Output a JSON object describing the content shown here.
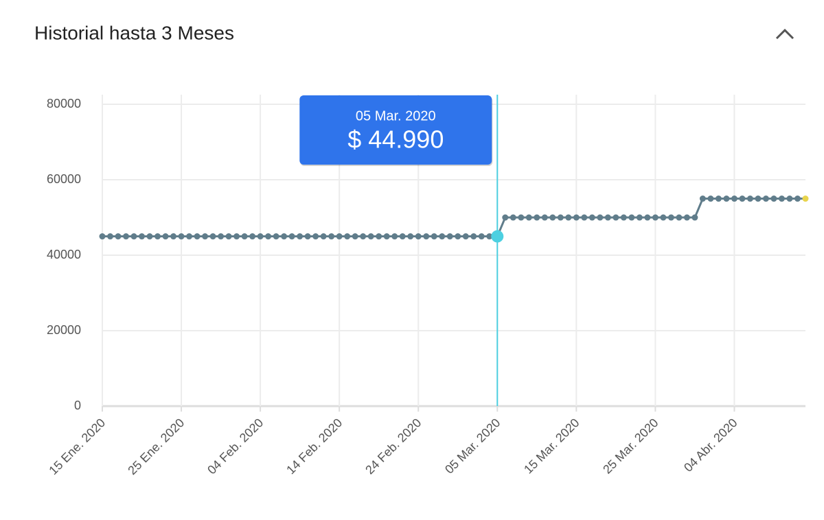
{
  "header": {
    "title": "Historial hasta 3 Meses"
  },
  "chart_data": {
    "type": "line",
    "categories": [
      "15 Ene. 2020",
      null,
      null,
      null,
      null,
      null,
      null,
      null,
      null,
      null,
      "25 Ene. 2020",
      null,
      null,
      null,
      null,
      null,
      null,
      null,
      null,
      null,
      "04 Feb. 2020",
      null,
      null,
      null,
      null,
      null,
      null,
      null,
      null,
      null,
      "14 Feb. 2020",
      null,
      null,
      null,
      null,
      null,
      null,
      null,
      null,
      null,
      "24 Feb. 2020",
      null,
      null,
      null,
      null,
      null,
      null,
      null,
      null,
      null,
      "05 Mar. 2020",
      null,
      null,
      null,
      null,
      null,
      null,
      null,
      null,
      null,
      "15 Mar. 2020",
      null,
      null,
      null,
      null,
      null,
      null,
      null,
      null,
      null,
      "25 Mar. 2020",
      null,
      null,
      null,
      null,
      null,
      null,
      null,
      null,
      null,
      "04 Abr. 2020",
      null,
      null,
      null,
      null,
      null,
      null,
      null,
      null,
      null
    ],
    "series": [
      {
        "color": "#607d8b",
        "values": [
          44990,
          44990,
          44990,
          44990,
          44990,
          44990,
          44990,
          44990,
          44990,
          44990,
          44990,
          44990,
          44990,
          44990,
          44990,
          44990,
          44990,
          44990,
          44990,
          44990,
          44990,
          44990,
          44990,
          44990,
          44990,
          44990,
          44990,
          44990,
          44990,
          44990,
          44990,
          44990,
          44990,
          44990,
          44990,
          44990,
          44990,
          44990,
          44990,
          44990,
          44990,
          44990,
          44990,
          44990,
          44990,
          44990,
          44990,
          44990,
          44990,
          44990,
          44990,
          49990,
          49990,
          49990,
          49990,
          49990,
          49990,
          49990,
          49990,
          49990,
          49990,
          49990,
          49990,
          49990,
          49990,
          49990,
          49990,
          49990,
          49990,
          49990,
          49990,
          49990,
          49990,
          49990,
          49990,
          49990,
          54990,
          54990,
          54990,
          54990,
          54990,
          54990,
          54990,
          54990,
          54990,
          54990,
          54990,
          54990,
          54990,
          54990
        ]
      }
    ],
    "ylim": [
      0,
      80000
    ],
    "yticks": [
      0,
      20000,
      40000,
      60000,
      80000
    ],
    "grid": true,
    "highlight_color": "#4dd0e1",
    "last_point_color": "#e8d44d",
    "tooltip": {
      "category": "05 Mar. 2020",
      "value": 44990,
      "label": "$ 44.990",
      "color": "#2f74eb"
    }
  }
}
